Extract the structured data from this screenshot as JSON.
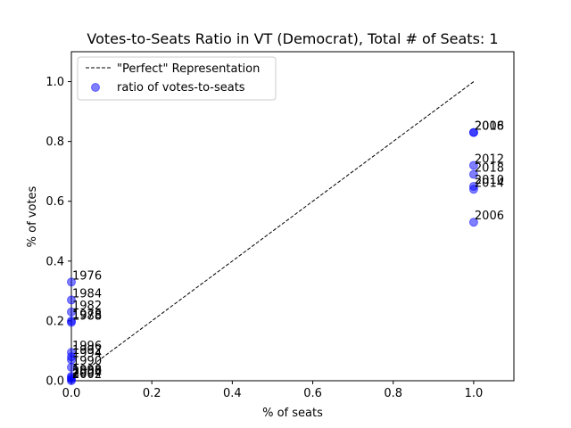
{
  "chart_data": {
    "type": "scatter",
    "title": "Votes-to-Seats Ratio in VT (Democrat), Total # of Seats: 1",
    "xlabel": "% of seats",
    "ylabel": "% of votes",
    "xlim": [
      0,
      1.1
    ],
    "ylim": [
      0,
      1.1
    ],
    "xticks": [
      "0.0",
      "0.2",
      "0.4",
      "0.6",
      "0.8",
      "1.0"
    ],
    "yticks": [
      "0.0",
      "0.2",
      "0.4",
      "0.6",
      "0.8",
      "1.0"
    ],
    "grid": false,
    "legend_position": "upper-left",
    "colors": {
      "points": "#0000ff",
      "reference_line": "#000000"
    },
    "series": [
      {
        "name": "\"Perfect\" Representation",
        "kind": "line",
        "style": "dashed",
        "x": [
          0,
          1
        ],
        "y": [
          0,
          1
        ]
      },
      {
        "name": "ratio of votes-to-seats",
        "kind": "scatter",
        "points": [
          {
            "label": "1976",
            "x": 0,
            "y": 0.33
          },
          {
            "label": "1984",
            "x": 0,
            "y": 0.27
          },
          {
            "label": "1982",
            "x": 0,
            "y": 0.23
          },
          {
            "label": "1978",
            "x": 0,
            "y": 0.2
          },
          {
            "label": "1988",
            "x": 0,
            "y": 0.195
          },
          {
            "label": "1996",
            "x": 0,
            "y": 0.095
          },
          {
            "label": "1992",
            "x": 0,
            "y": 0.08
          },
          {
            "label": "1994",
            "x": 0,
            "y": 0.07
          },
          {
            "label": "1990",
            "x": 0,
            "y": 0.045
          },
          {
            "label": "1998",
            "x": 0,
            "y": 0.015
          },
          {
            "label": "2000",
            "x": 0,
            "y": 0.01
          },
          {
            "label": "2004",
            "x": 0,
            "y": 0.005
          },
          {
            "label": "2002",
            "x": 0,
            "y": 0.0
          },
          {
            "label": "2008",
            "x": 1,
            "y": 0.83
          },
          {
            "label": "2016",
            "x": 1,
            "y": 0.83
          },
          {
            "label": "2012",
            "x": 1,
            "y": 0.72
          },
          {
            "label": "2018",
            "x": 1,
            "y": 0.69
          },
          {
            "label": "2010",
            "x": 1,
            "y": 0.65
          },
          {
            "label": "2014",
            "x": 1,
            "y": 0.64
          },
          {
            "label": "2006",
            "x": 1,
            "y": 0.53
          }
        ]
      }
    ]
  }
}
